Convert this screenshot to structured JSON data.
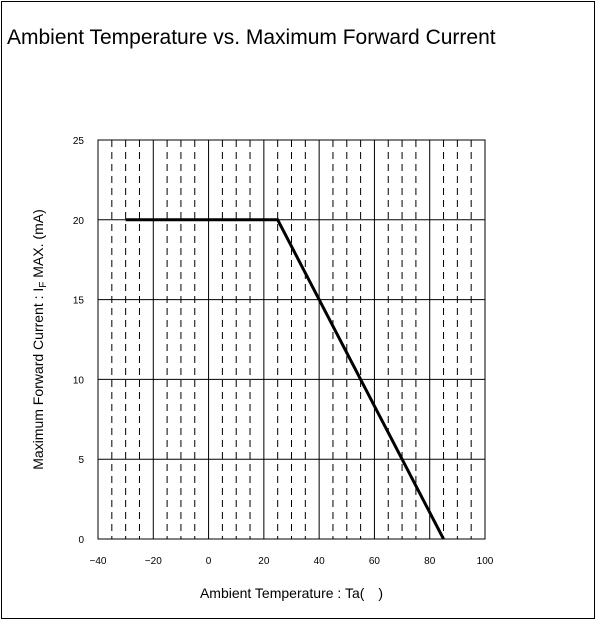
{
  "chart_data": {
    "type": "line",
    "title": "Ambient Temperature vs. Maximum Forward Current",
    "xlabel": "Ambient Temperature : Ta( )",
    "ylabel": {
      "prefix": "Maximum Forward Current : I",
      "subscript": "F",
      "suffix": " MAX. (mA)"
    },
    "xlim": [
      -40,
      100
    ],
    "ylim": [
      0,
      25
    ],
    "x_ticks": [
      -40,
      -20,
      0,
      20,
      40,
      60,
      80,
      100
    ],
    "y_ticks": [
      0,
      5,
      10,
      15,
      20,
      25
    ],
    "x_major_grid": [
      -40,
      -20,
      0,
      20,
      40,
      60,
      80,
      100
    ],
    "x_minor_grid_step": 5,
    "y_major_grid": [
      0,
      5,
      10,
      15,
      20,
      25
    ],
    "grid": true,
    "series": [
      {
        "x": [
          -30,
          25,
          85
        ],
        "y": [
          20,
          20,
          0
        ]
      }
    ]
  }
}
